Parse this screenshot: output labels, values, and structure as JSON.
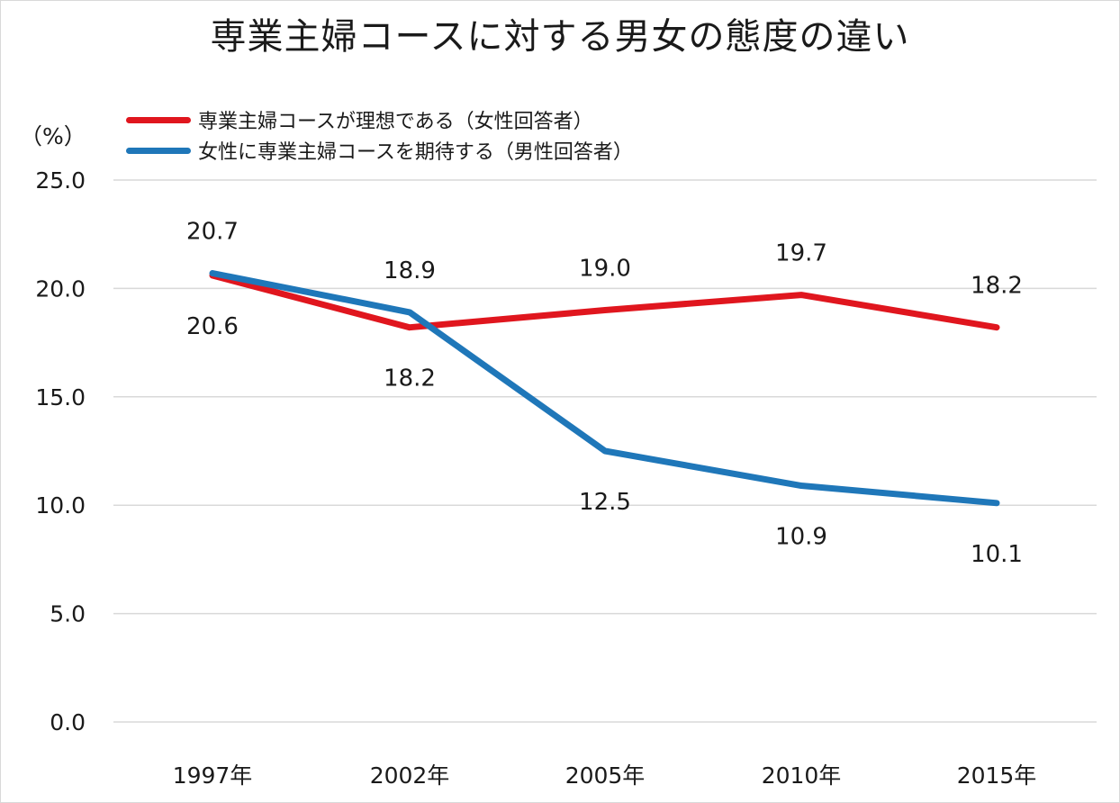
{
  "title": "専業主婦コースに対する男女の態度の違い",
  "chart_data": {
    "type": "line",
    "title": "専業主婦コースに対する男女の態度の違い",
    "ylabel": "（%）",
    "categories": [
      "1997年",
      "2002年",
      "2005年",
      "2010年",
      "2015年"
    ],
    "ylim": [
      0,
      25
    ],
    "yticks": [
      "0.0",
      "5.0",
      "10.0",
      "15.0",
      "20.0",
      "25.0"
    ],
    "grid": true,
    "legend_position": "top-left",
    "series": [
      {
        "name": "専業主婦コースが理想である（女性回答者）",
        "color": "#e0161e",
        "values": [
          20.6,
          18.2,
          19.0,
          19.7,
          18.2
        ],
        "labels": [
          "20.6",
          "18.2",
          "19.0",
          "19.7",
          "18.2"
        ],
        "label_side": [
          "below",
          "below",
          "above",
          "above",
          "above"
        ]
      },
      {
        "name": "女性に専業主婦コースを期待する（男性回答者）",
        "color": "#1f77b9",
        "values": [
          20.7,
          18.9,
          12.5,
          10.9,
          10.1
        ],
        "labels": [
          "20.7",
          "18.9",
          "12.5",
          "10.9",
          "10.1"
        ],
        "label_side": [
          "above",
          "above",
          "below",
          "below",
          "below"
        ]
      }
    ]
  }
}
